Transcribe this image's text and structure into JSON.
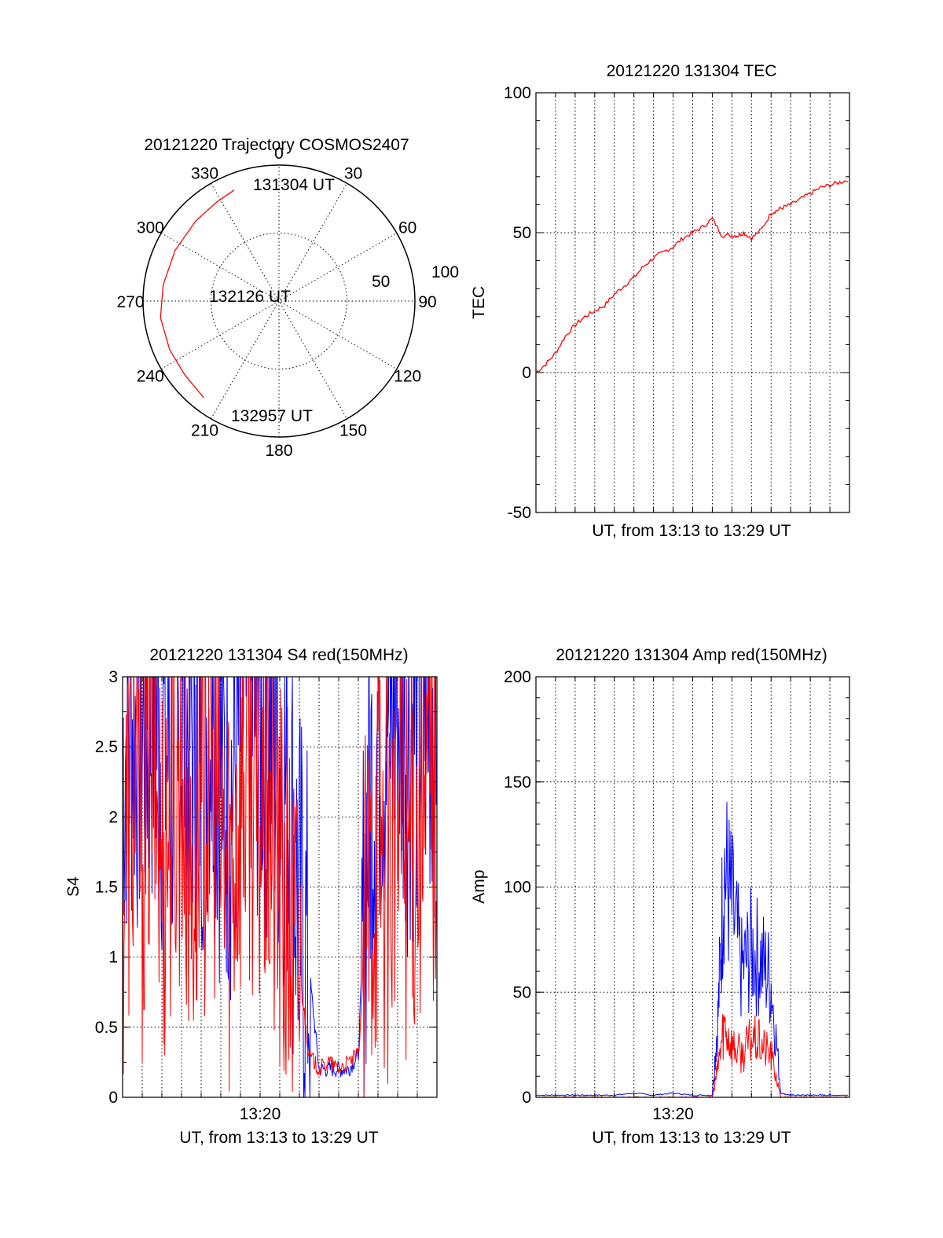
{
  "colors": {
    "red": "#ff0000",
    "blue": "#0000ff",
    "axis": "#000000"
  },
  "chart_data": [
    {
      "type": "polar",
      "title": "20121220 Trajectory COSMOS2407",
      "azimuth_labels": [
        "0",
        "30",
        "60",
        "90",
        "120",
        "150",
        "180",
        "210",
        "240",
        "270",
        "300",
        "330"
      ],
      "radial_labels": [
        "50",
        "100"
      ],
      "series": [
        {
          "color": "red",
          "points": [
            {
              "az": 338,
              "zen": 88
            },
            {
              "az": 328,
              "zen": 86
            },
            {
              "az": 314,
              "zen": 85
            },
            {
              "az": 296,
              "zen": 85
            },
            {
              "az": 278,
              "zen": 86
            },
            {
              "az": 262,
              "zen": 88
            },
            {
              "az": 246,
              "zen": 88
            },
            {
              "az": 232,
              "zen": 88
            },
            {
              "az": 218,
              "zen": 90
            }
          ]
        }
      ],
      "annotations": [
        "131304 UT",
        "132126 UT",
        "132957 UT"
      ]
    },
    {
      "type": "line",
      "title": "20121220 131304 TEC",
      "xlabel": "UT, from 13:13 to 13:29 UT",
      "ylabel": "TEC",
      "xlim": [
        0,
        16
      ],
      "ylim": [
        -50,
        100
      ],
      "yticks": [
        "-50",
        "0",
        "50",
        "100"
      ],
      "xticks": [],
      "grid": true,
      "series": [
        {
          "color": "red",
          "x": [
            0,
            0.5,
            1,
            1.5,
            2,
            2.5,
            3,
            3.5,
            4,
            4.5,
            5,
            5.5,
            6,
            6.5,
            7,
            7.5,
            8,
            8.5,
            9,
            9.5,
            10,
            10.3,
            10.6,
            11,
            11.5,
            12,
            12.3,
            12.6,
            13,
            13.5,
            14,
            14.5,
            15,
            15.5,
            16
          ],
          "y": [
            0,
            3,
            7,
            13,
            17,
            20,
            22,
            24,
            28,
            31,
            34,
            38,
            41,
            43,
            45,
            48,
            50,
            52,
            55,
            49,
            49,
            49,
            50,
            48,
            51,
            57,
            58,
            59,
            60,
            62,
            64,
            66,
            67,
            68,
            69
          ]
        }
      ]
    },
    {
      "type": "line",
      "title": "20121220 131304 S4 red(150MHz)",
      "xlabel": "UT, from 13:13 to 13:29 UT",
      "ylabel": "S4",
      "xlim": [
        0,
        16
      ],
      "ylim": [
        0,
        3
      ],
      "yticks": [
        "0",
        "0.5",
        "1",
        "1.5",
        "2",
        "2.5",
        "3"
      ],
      "xticks": [
        "13:20"
      ],
      "grid": true,
      "series": [
        {
          "color": "blue",
          "x": [
            0,
            0.5,
            1,
            1.5,
            2,
            2.5,
            3,
            3.5,
            4,
            4.5,
            5,
            5.5,
            6,
            6.5,
            7,
            7.5,
            8,
            8.5,
            9,
            9.5,
            10,
            10.5,
            11,
            11.5,
            12,
            12.5,
            13,
            13.5,
            14,
            14.5,
            15,
            15.5,
            16
          ],
          "y": [
            2.5,
            2.7,
            2.6,
            2.8,
            2.5,
            2.4,
            2.7,
            2.6,
            2.5,
            2.9,
            2.3,
            2.2,
            2.6,
            2.8,
            2.7,
            2.6,
            2.4,
            2.1,
            1.3,
            0.9,
            0.2,
            0.2,
            0.2,
            0.2,
            0.3,
            2.0,
            2.6,
            2.7,
            2.8,
            2.6,
            2.7,
            2.8,
            2.9
          ]
        },
        {
          "color": "red",
          "x": [
            0,
            0.5,
            1,
            1.5,
            2,
            2.5,
            3,
            3.5,
            4,
            4.5,
            5,
            5.5,
            6,
            6.5,
            7,
            7.5,
            8,
            8.5,
            9,
            9.5,
            10,
            10.5,
            11,
            11.5,
            12,
            12.5,
            13,
            13.5,
            14,
            14.5,
            15,
            15.5,
            16
          ],
          "y": [
            1.5,
            2.3,
            1.8,
            2.6,
            1.7,
            2.1,
            2.4,
            1.6,
            2.0,
            2.5,
            1.8,
            1.6,
            2.2,
            2.4,
            2.0,
            1.9,
            1.5,
            1.2,
            0.9,
            0.3,
            0.2,
            0.25,
            0.2,
            0.25,
            0.3,
            1.4,
            2.0,
            1.6,
            2.2,
            1.8,
            2.0,
            2.1,
            2.2
          ]
        }
      ]
    },
    {
      "type": "line",
      "title": "20121220 131304 Amp red(150MHz)",
      "xlabel": "UT, from 13:13 to 13:29 UT",
      "ylabel": "Amp",
      "xlim": [
        0,
        16
      ],
      "ylim": [
        0,
        200
      ],
      "yticks": [
        "0",
        "50",
        "100",
        "150",
        "200"
      ],
      "xticks": [
        "13:20"
      ],
      "grid": true,
      "series": [
        {
          "color": "blue",
          "x": [
            0,
            1,
            2,
            3,
            4,
            5,
            6,
            7,
            8,
            9,
            9.3,
            9.6,
            10,
            10.5,
            11,
            11.5,
            12,
            12.5,
            13,
            13.5,
            14,
            14.5,
            15,
            16
          ],
          "y": [
            1,
            1,
            1,
            1,
            1,
            2,
            1,
            2,
            1,
            1,
            40,
            110,
            90,
            60,
            70,
            65,
            55,
            2,
            1,
            1,
            1,
            1,
            1,
            1
          ]
        },
        {
          "color": "red",
          "x": [
            0,
            1,
            2,
            3,
            4,
            5,
            6,
            7,
            8,
            9,
            9.3,
            9.6,
            10,
            10.5,
            11,
            11.5,
            12,
            12.5,
            13,
            13.5,
            14,
            14.5,
            15,
            16
          ],
          "y": [
            0,
            0,
            0,
            0,
            0,
            0,
            0,
            0,
            0,
            0,
            15,
            35,
            25,
            20,
            28,
            25,
            20,
            0,
            0,
            0,
            0,
            0,
            0,
            0
          ]
        }
      ]
    }
  ]
}
